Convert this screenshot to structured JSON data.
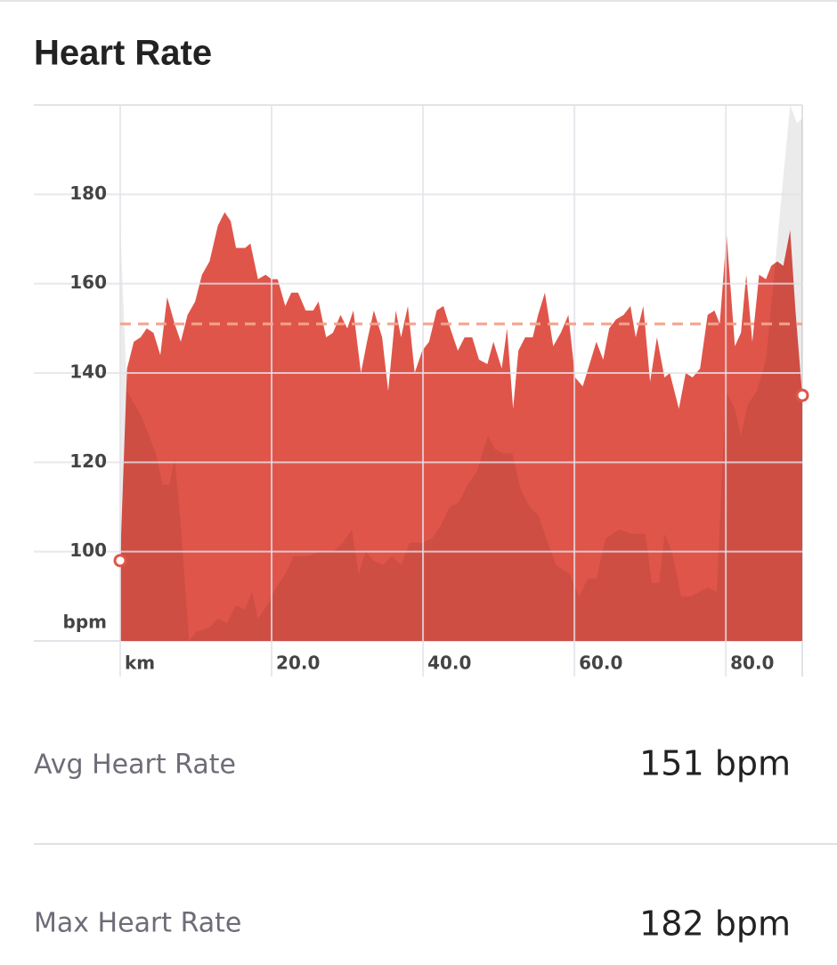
{
  "header": {
    "title": "Heart Rate"
  },
  "chart_data": {
    "type": "area",
    "ylim": [
      80,
      200
    ],
    "yticks": [
      100,
      120,
      140,
      160,
      180
    ],
    "y_label": "bpm",
    "xlim": [
      0,
      90.1
    ],
    "xticks": [
      {
        "value": 0,
        "label": "km"
      },
      {
        "value": 20,
        "label": "20.0"
      },
      {
        "value": 40,
        "label": "40.0"
      },
      {
        "value": 60,
        "label": "60.0"
      },
      {
        "value": 80,
        "label": "80.0"
      }
    ],
    "grid": true,
    "reference_line": 151,
    "reference_color": "#f4a38c",
    "series": [
      {
        "color": "#e0554a",
        "x": [
          0,
          0.9,
          1.8,
          2.7,
          3.5,
          4.4,
          5.3,
          6.2,
          7.2,
          8.0,
          8.9,
          9.9,
          10.8,
          11.8,
          12.9,
          13.8,
          14.6,
          15.3,
          16.5,
          17.2,
          18.2,
          19.2,
          20.0,
          20.8,
          21.8,
          22.6,
          23.5,
          24.5,
          25.5,
          26.2,
          27.2,
          28.1,
          29.1,
          30.0,
          30.8,
          31.8,
          32.6,
          33.5,
          34.6,
          35.4,
          36.4,
          37.1,
          38.0,
          38.9,
          39.9,
          40.8,
          41.8,
          42.7,
          43.6,
          44.6,
          45.5,
          46.5,
          47.4,
          48.5,
          49.3,
          50.4,
          51.1,
          51.9,
          52.6,
          53.5,
          54.5,
          55.2,
          56.1,
          57.2,
          58.2,
          59.2,
          60.1,
          61.1,
          62.0,
          62.9,
          63.8,
          64.6,
          65.5,
          66.5,
          67.4,
          68.1,
          69.1,
          70.0,
          70.9,
          71.9,
          72.6,
          73.8,
          74.7,
          75.6,
          76.6,
          77.6,
          78.5,
          79.2,
          80.1,
          81.2,
          82.0,
          82.7,
          83.5,
          84.4,
          85.3,
          86.0,
          86.8,
          87.6,
          88.5,
          89.2,
          90.1
        ],
        "values": [
          98,
          141,
          147,
          148,
          150,
          149,
          144,
          157,
          151,
          147,
          153,
          156,
          162,
          165,
          173,
          176,
          174,
          168,
          168,
          169,
          161,
          162,
          161,
          161,
          155,
          158,
          158,
          154,
          154,
          156,
          148,
          149,
          153,
          150,
          154,
          140,
          147,
          154,
          148,
          136,
          154,
          148,
          155,
          140,
          145,
          147,
          154,
          155,
          150,
          145,
          148,
          148,
          143,
          142,
          147,
          141,
          150,
          132,
          145,
          148,
          148,
          153,
          158,
          146,
          149,
          153,
          139,
          137,
          142,
          147,
          143,
          150,
          152,
          153,
          155,
          148,
          155,
          138,
          148,
          139,
          140,
          132,
          140,
          139,
          141,
          153,
          154,
          151,
          171,
          146,
          149,
          162,
          147,
          162,
          161,
          164,
          165,
          164,
          172,
          154,
          135
        ]
      },
      {
        "color": "#000000",
        "x": [
          0,
          0.9,
          2.9,
          4.7,
          5.6,
          6.5,
          7.2,
          8.0,
          9.1,
          10.0,
          11.8,
          12.9,
          14.1,
          15.3,
          16.5,
          17.4,
          18.2,
          19.4,
          20.6,
          21.8,
          22.9,
          24.7,
          26.5,
          28.2,
          29.4,
          30.6,
          31.5,
          32.4,
          33.5,
          34.7,
          35.9,
          37.1,
          38.2,
          40.0,
          41.2,
          42.4,
          43.5,
          44.7,
          45.9,
          47.1,
          48.6,
          49.5,
          50.6,
          51.8,
          52.9,
          54.1,
          55.3,
          56.5,
          57.6,
          59.4,
          60.6,
          61.8,
          62.9,
          64.1,
          65.9,
          67.6,
          69.4,
          70.2,
          71.2,
          71.9,
          72.9,
          74.1,
          75.3,
          76.5,
          77.6,
          78.8,
          80.0,
          81.2,
          82.0,
          82.9,
          84.1,
          85.3,
          86.5,
          87.6,
          88.5,
          89.4,
          90.1
        ],
        "values": [
          173,
          136,
          130,
          122,
          115,
          115,
          121,
          106,
          80,
          82,
          83,
          85,
          84,
          88,
          87,
          91,
          85,
          88,
          92,
          95,
          99,
          99,
          100,
          100,
          102,
          105,
          95,
          100,
          98,
          97,
          99,
          97,
          102,
          102,
          103,
          106,
          110,
          111,
          115,
          118,
          126,
          123,
          122,
          122,
          114,
          110,
          108,
          102,
          97,
          95,
          90,
          94,
          94,
          103,
          105,
          104,
          104,
          93,
          93,
          104,
          100,
          90,
          90,
          91,
          92,
          91,
          136,
          132,
          126,
          133,
          136,
          143,
          164,
          184,
          200,
          196,
          197
        ]
      }
    ]
  },
  "stats": [
    {
      "label": "Avg Heart Rate",
      "value": "151 bpm"
    },
    {
      "label": "Max Heart Rate",
      "value": "182 bpm"
    }
  ]
}
